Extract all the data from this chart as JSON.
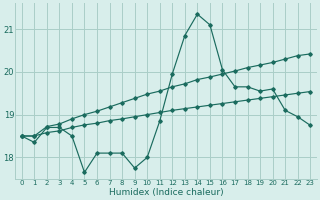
{
  "xlabel": "Humidex (Indice chaleur)",
  "background_color": "#d8eeeb",
  "grid_color": "#aacdc7",
  "line_color": "#1a6b5e",
  "x_values": [
    0,
    1,
    2,
    3,
    4,
    5,
    6,
    7,
    8,
    9,
    10,
    11,
    12,
    13,
    14,
    15,
    16,
    17,
    18,
    19,
    20,
    21,
    22,
    23
  ],
  "series0": [
    18.5,
    18.35,
    18.7,
    18.7,
    18.5,
    17.65,
    18.1,
    18.1,
    18.1,
    17.75,
    18.0,
    18.85,
    19.95,
    20.85,
    21.35,
    21.1,
    20.05,
    19.65,
    19.65,
    19.55,
    19.6,
    19.1,
    18.95,
    18.75
  ],
  "series1": [
    18.5,
    18.5,
    18.72,
    18.78,
    18.9,
    19.0,
    19.08,
    19.18,
    19.28,
    19.38,
    19.48,
    19.55,
    19.65,
    19.72,
    19.82,
    19.88,
    19.95,
    20.02,
    20.1,
    20.16,
    20.22,
    20.3,
    20.38,
    20.42
  ],
  "series2": [
    18.5,
    18.5,
    18.58,
    18.62,
    18.7,
    18.76,
    18.8,
    18.86,
    18.9,
    18.95,
    19.0,
    19.05,
    19.1,
    19.14,
    19.18,
    19.22,
    19.26,
    19.3,
    19.34,
    19.38,
    19.42,
    19.46,
    19.5,
    19.54
  ],
  "ylim": [
    17.5,
    21.6
  ],
  "yticks": [
    18,
    19,
    20,
    21
  ],
  "xticks": [
    0,
    1,
    2,
    3,
    4,
    5,
    6,
    7,
    8,
    9,
    10,
    11,
    12,
    13,
    14,
    15,
    16,
    17,
    18,
    19,
    20,
    21,
    22,
    23
  ]
}
